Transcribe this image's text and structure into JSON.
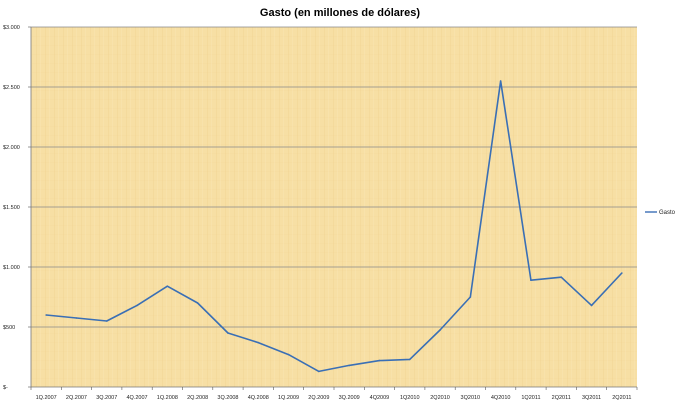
{
  "chart_data": {
    "type": "line",
    "title": "Gasto (en millones de dólares)",
    "xlabel": "",
    "ylabel": "",
    "ylim": [
      0,
      3000
    ],
    "y_ticks": [
      0,
      500,
      1000,
      1500,
      2000,
      2500,
      3000
    ],
    "y_tick_labels": [
      "$-",
      "$500",
      "$1.000",
      "$1.500",
      "$2.000",
      "$2.500",
      "$3.000"
    ],
    "categories": [
      "1Q.2007",
      "2Q.2007",
      "3Q.2007",
      "4Q.2007",
      "1Q.2008",
      "2Q.2008",
      "3Q.2008",
      "4Q.2008",
      "1Q.2009",
      "2Q.2009",
      "3Q.2009",
      "4Q2009",
      "1Q2010",
      "2Q2010",
      "3Q2010",
      "4Q2010",
      "1Q2011",
      "2Q2011",
      "3Q2011",
      "2Q2011"
    ],
    "series": [
      {
        "name": "Gasto",
        "color": "#3a6fb5",
        "values": [
          600,
          575,
          550,
          680,
          840,
          700,
          450,
          370,
          270,
          130,
          180,
          220,
          230,
          475,
          750,
          2550,
          890,
          915,
          680,
          950
        ]
      }
    ],
    "grid": true,
    "legend": "right",
    "background": "parchment"
  }
}
